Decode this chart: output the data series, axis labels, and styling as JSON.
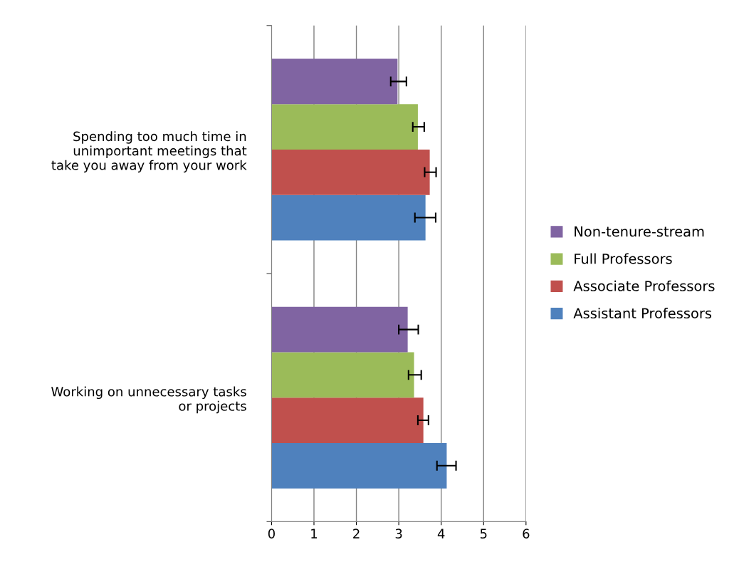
{
  "chart_data": {
    "type": "bar",
    "orientation": "horizontal",
    "categories": [
      "Spending too much time in\nunimportant meetings that\ntake you away from your work",
      "Working on unnecessary tasks\nor projects"
    ],
    "series": [
      {
        "name": "Assistant Professors",
        "color": "#4f81bd",
        "values": [
          3.63,
          4.13
        ],
        "errors": [
          [
            3.38,
            3.87
          ],
          [
            3.9,
            4.35
          ]
        ]
      },
      {
        "name": "Associate Professors",
        "color": "#c0504d",
        "values": [
          3.73,
          3.58
        ],
        "errors": [
          [
            3.61,
            3.88
          ],
          [
            3.45,
            3.7
          ]
        ]
      },
      {
        "name": "Full Professors",
        "color": "#9bbb59",
        "values": [
          3.45,
          3.36
        ],
        "errors": [
          [
            3.33,
            3.6
          ],
          [
            3.23,
            3.53
          ]
        ]
      },
      {
        "name": "Non-tenure-stream",
        "color": "#8064a2",
        "values": [
          2.97,
          3.21
        ],
        "errors": [
          [
            2.81,
            3.18
          ],
          [
            3.0,
            3.46
          ]
        ]
      }
    ],
    "xlim": [
      0,
      6
    ],
    "xticks": [
      0,
      1,
      2,
      3,
      4,
      5,
      6
    ],
    "grid": "x",
    "legend": "right"
  }
}
